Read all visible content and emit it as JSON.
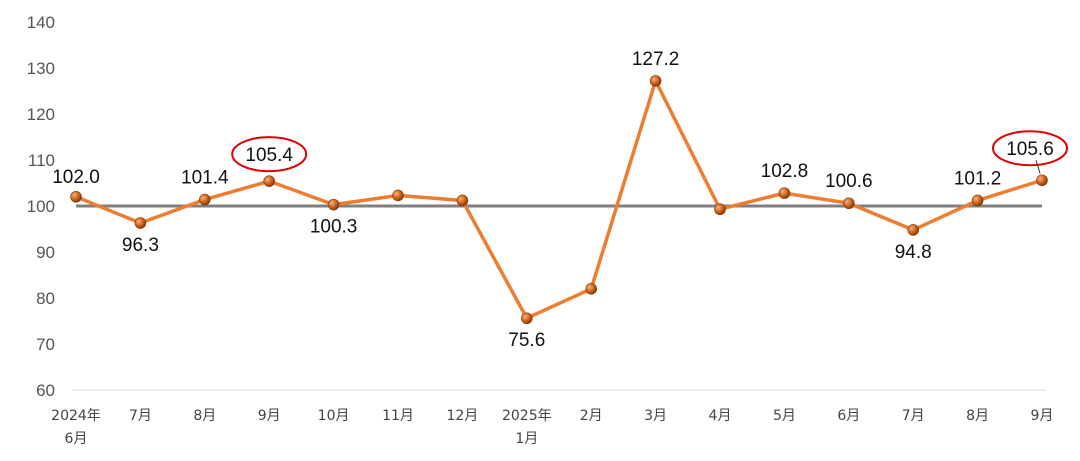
{
  "chart_data": {
    "type": "line",
    "title": "",
    "xlabel": "",
    "ylabel": "",
    "ylim": [
      60,
      140
    ],
    "yticks": [
      60,
      70,
      80,
      90,
      100,
      110,
      120,
      130,
      140
    ],
    "categories": [
      [
        "2024年",
        "6月"
      ],
      [
        "7月"
      ],
      [
        "8月"
      ],
      [
        "9月"
      ],
      [
        "10月"
      ],
      [
        "11月"
      ],
      [
        "12月"
      ],
      [
        "2025年",
        "1月"
      ],
      [
        "2月"
      ],
      [
        "3月"
      ],
      [
        "4月"
      ],
      [
        "5月"
      ],
      [
        "6月"
      ],
      [
        "7月"
      ],
      [
        "8月"
      ],
      [
        "9月"
      ]
    ],
    "series": [
      {
        "values": [
          102.0,
          96.3,
          101.4,
          105.4,
          100.3,
          102.3,
          101.2,
          75.6,
          82.0,
          127.2,
          99.3,
          102.8,
          100.6,
          94.8,
          101.2,
          105.6
        ],
        "labels": [
          "102.0",
          "96.3",
          "101.4",
          "105.4",
          "100.3",
          "",
          "",
          "75.6",
          "",
          "127.2",
          "",
          "102.8",
          "100.6",
          "94.8",
          "101.2",
          "105.6"
        ],
        "color": "#ED7D31",
        "marker_color": "#C65A11"
      }
    ],
    "reference_line": {
      "value": 100,
      "color": "#7F7F7F"
    },
    "highlighted_labels": [
      3,
      15
    ],
    "highlight_color": "#E00000",
    "grid": false,
    "legend": "none"
  }
}
